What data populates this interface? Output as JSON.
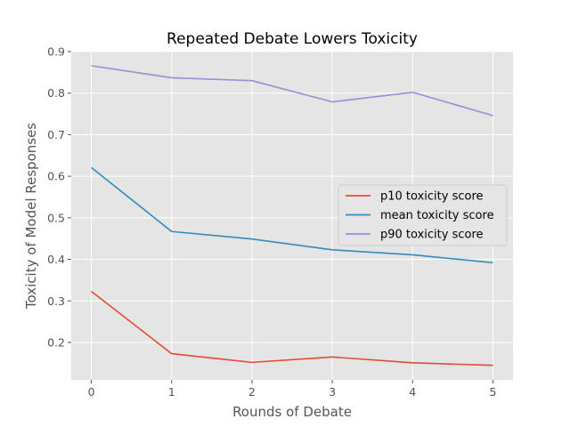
{
  "chart_data": {
    "type": "line",
    "title": "Repeated Debate Lowers Toxicity",
    "xlabel": "Rounds of Debate",
    "ylabel": "Toxicity of Model Responses",
    "x": [
      0,
      1,
      2,
      3,
      4,
      5
    ],
    "xlim": [
      -0.25,
      5.25
    ],
    "ylim": [
      0.11,
      0.9
    ],
    "xticks": [
      "0",
      "1",
      "2",
      "3",
      "4",
      "5"
    ],
    "yticks": [
      "0.2",
      "0.3",
      "0.4",
      "0.5",
      "0.6",
      "0.7",
      "0.8",
      "0.9"
    ],
    "grid": true,
    "legend_position": "center-right",
    "series": [
      {
        "name": "p10 toxicity score",
        "color": "#E24A33",
        "values": [
          0.323,
          0.173,
          0.152,
          0.165,
          0.151,
          0.145
        ]
      },
      {
        "name": "mean toxicity score",
        "color": "#348ABD",
        "values": [
          0.621,
          0.467,
          0.449,
          0.423,
          0.411,
          0.392
        ]
      },
      {
        "name": "p90 toxicity score",
        "color": "#988ED5",
        "values": [
          0.866,
          0.837,
          0.83,
          0.779,
          0.802,
          0.746
        ]
      }
    ]
  }
}
